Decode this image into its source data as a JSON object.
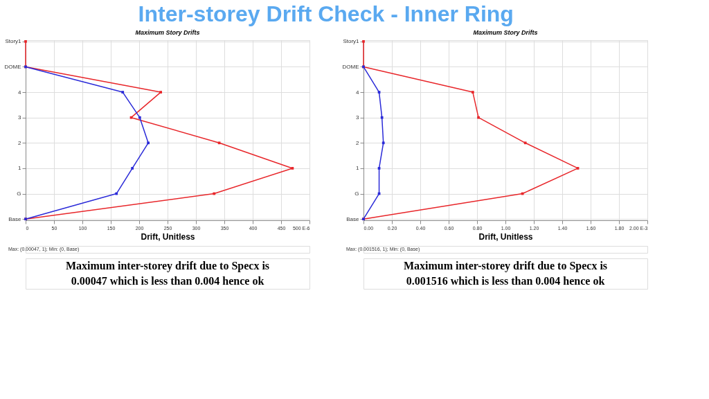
{
  "chart_data": [
    {
      "type": "line",
      "title": "Maximum Story Drifts",
      "xlabel": "Drift, Unitless",
      "orientation": "horizontal",
      "categories": [
        "Story1",
        "DOME",
        "4",
        "3",
        "2",
        "1",
        "G",
        "Base"
      ],
      "series": [
        {
          "color": "#e8262a",
          "values": [
            0,
            0,
            238,
            186,
            341,
            470,
            332,
            0
          ]
        },
        {
          "color": "#2a2ad8",
          "values": [
            null,
            0,
            171,
            201,
            216,
            188,
            160,
            0
          ]
        }
      ],
      "xlim": [
        0,
        500
      ],
      "xticks": [
        0,
        50,
        100,
        150,
        200,
        250,
        300,
        350,
        400,
        450,
        {
          "value": 500,
          "label": "500 E-6"
        }
      ],
      "grid": true,
      "marker": "square",
      "line_style": "solid",
      "legend": false,
      "annotations": [
        "Inter-storey Drift Check - Inner Ring",
        "Max: (0.00047, 1);  Min: (0, Base)",
        "Maximum inter-storey drift due to Specx is 0.00047 which is less than 0.004 hence ok"
      ]
    },
    {
      "type": "line",
      "title": "Maximum Story Drifts",
      "xlabel": "Drift, Unitless",
      "orientation": "horizontal",
      "categories": [
        "Story1",
        "DOME",
        "4",
        "3",
        "2",
        "1",
        "G",
        "Base"
      ],
      "series": [
        {
          "color": "#e8262a",
          "values": [
            0,
            0,
            0.77,
            0.81,
            1.14,
            1.51,
            1.12,
            0
          ]
        },
        {
          "color": "#2a2ad8",
          "values": [
            null,
            0,
            0.11,
            0.13,
            0.14,
            0.11,
            0.11,
            0
          ]
        }
      ],
      "xlim": [
        0,
        2
      ],
      "xticks": [
        {
          "value": 0,
          "label": "0.00"
        },
        {
          "value": 0.2,
          "label": "0.20"
        },
        {
          "value": 0.4,
          "label": "0.40"
        },
        {
          "value": 0.6,
          "label": "0.60"
        },
        {
          "value": 0.8,
          "label": "0.80"
        },
        {
          "value": 1,
          "label": "1.00"
        },
        {
          "value": 1.2,
          "label": "1.20"
        },
        {
          "value": 1.4,
          "label": "1.40"
        },
        {
          "value": 1.6,
          "label": "1.60"
        },
        {
          "value": 1.8,
          "label": "1.80"
        },
        {
          "value": 2,
          "label": "2.00 E-3"
        }
      ],
      "grid": true,
      "marker": "square",
      "line_style": "solid",
      "legend": false,
      "annotations": [
        "Max: (0.001516, 1);  Min: (0, Base)",
        "Maximum inter-storey drift due to Specx is 0.001516 which is less than 0.004 hence ok"
      ]
    }
  ]
}
